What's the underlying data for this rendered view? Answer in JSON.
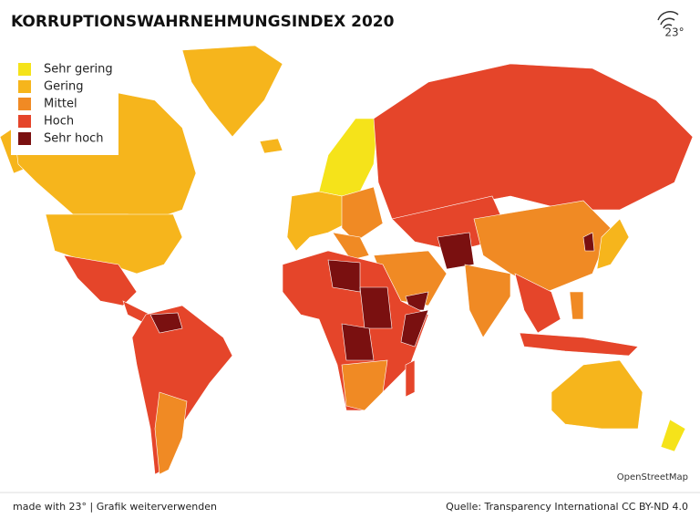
{
  "title": "KORRUPTIONSWAHRNEHMUNGSINDEX 2020",
  "logo": "23°",
  "legend": [
    {
      "name": "Sehr gering",
      "color": "#f5e31a"
    },
    {
      "name": "Gering",
      "color": "#f6b51c"
    },
    {
      "name": "Mittel",
      "color": "#f08a24"
    },
    {
      "name": "Hoch",
      "color": "#e5452a"
    },
    {
      "name": "Sehr hoch",
      "color": "#7a1010"
    }
  ],
  "attribution": "OpenStreetMap",
  "footer": {
    "left": "made with 23° | Grafik weiterverwenden",
    "right": "Quelle: Transparency International CC BY-ND 4.0"
  }
}
